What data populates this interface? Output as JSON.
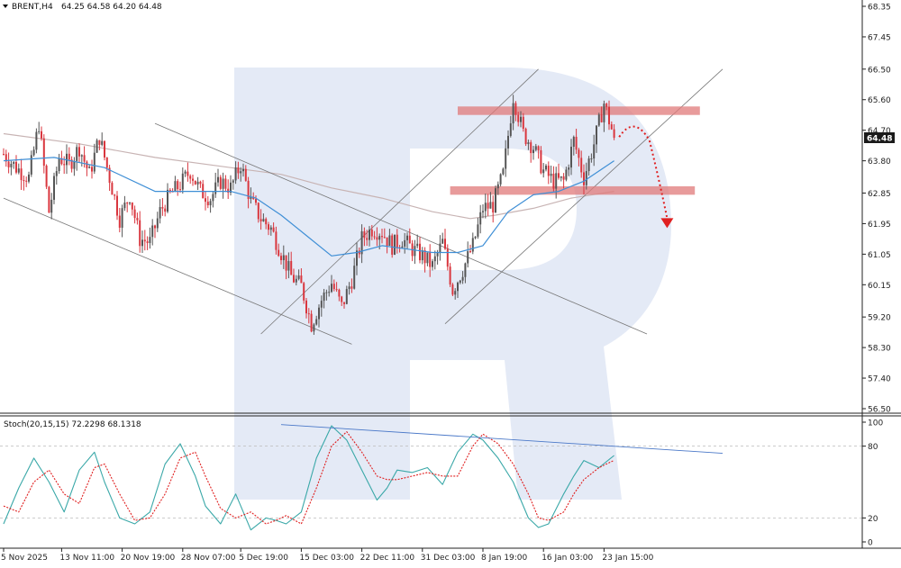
{
  "header": {
    "symbol_label": "BRENT,H4",
    "ohlc_label": "64.25 64.58 64.20 64.48",
    "stoch_label": "Stoch(20,15,15) 72.2298 68.1318"
  },
  "colors": {
    "bull": "#555555",
    "bear": "#d9363e",
    "ma_fast": "#3f8fd6",
    "ma_slow": "#c8b4b4",
    "trend": "#777777",
    "zone": "#e07a7a",
    "stoch_main": "#3aa8a8",
    "stoch_signal": "#e02020",
    "forecast": "#e02020",
    "divergence": "#4a78c8",
    "watermark": "#dfe6f4"
  },
  "chart_data": [
    {
      "type": "candlestick",
      "symbol": "BRENT",
      "timeframe": "H4",
      "last_price": 64.48,
      "last_price_label": "64.48",
      "ylim": [
        56.5,
        68.35
      ],
      "y_ticks": [
        68.35,
        67.45,
        66.5,
        65.6,
        64.7,
        63.8,
        62.85,
        61.95,
        61.05,
        60.15,
        59.2,
        58.3,
        57.4,
        56.5
      ],
      "y_tick_labels": [
        "68.35",
        "67.45",
        "66.50",
        "65.60",
        "64.70",
        "63.80",
        "62.85",
        "61.95",
        "61.05",
        "60.15",
        "59.20",
        "58.30",
        "57.40",
        "56.50"
      ],
      "x_ticks": [
        {
          "label": "5 Nov 2025",
          "bar": 0
        },
        {
          "label": "13 Nov 11:00",
          "bar": 23
        },
        {
          "label": "20 Nov 19:00",
          "bar": 47
        },
        {
          "label": "28 Nov 07:00",
          "bar": 71
        },
        {
          "label": "5 Dec 19:00",
          "bar": 94
        },
        {
          "label": "15 Dec 03:00",
          "bar": 118
        },
        {
          "label": "22 Dec 11:00",
          "bar": 142
        },
        {
          "label": "31 Dec 03:00",
          "bar": 166
        },
        {
          "label": "8 Jan 19:00",
          "bar": 190
        },
        {
          "label": "16 Jan 03:00",
          "bar": 214
        },
        {
          "label": "23 Jan 15:00",
          "bar": 238
        }
      ],
      "close_path": [
        [
          0,
          64.0
        ],
        [
          5,
          63.6
        ],
        [
          10,
          63.3
        ],
        [
          14,
          64.9
        ],
        [
          18,
          62.3
        ],
        [
          22,
          63.9
        ],
        [
          26,
          63.7
        ],
        [
          30,
          64.2
        ],
        [
          34,
          63.4
        ],
        [
          38,
          64.5
        ],
        [
          42,
          63.3
        ],
        [
          46,
          62.1
        ],
        [
          50,
          62.8
        ],
        [
          54,
          61.5
        ],
        [
          58,
          61.4
        ],
        [
          62,
          62.3
        ],
        [
          66,
          62.8
        ],
        [
          70,
          63.1
        ],
        [
          74,
          63.5
        ],
        [
          78,
          62.9
        ],
        [
          82,
          62.7
        ],
        [
          86,
          63.2
        ],
        [
          90,
          63.0
        ],
        [
          94,
          63.7
        ],
        [
          98,
          62.6
        ],
        [
          102,
          62.1
        ],
        [
          106,
          61.8
        ],
        [
          110,
          61.1
        ],
        [
          114,
          60.4
        ],
        [
          118,
          60.1
        ],
        [
          122,
          59.0
        ],
        [
          126,
          59.7
        ],
        [
          130,
          60.2
        ],
        [
          134,
          59.5
        ],
        [
          138,
          60.3
        ],
        [
          142,
          61.5
        ],
        [
          146,
          61.8
        ],
        [
          150,
          61.7
        ],
        [
          154,
          61.3
        ],
        [
          158,
          61.5
        ],
        [
          162,
          61.2
        ],
        [
          166,
          61.0
        ],
        [
          170,
          60.7
        ],
        [
          174,
          61.4
        ],
        [
          178,
          60.0
        ],
        [
          182,
          60.6
        ],
        [
          186,
          61.3
        ],
        [
          190,
          62.4
        ],
        [
          194,
          62.5
        ],
        [
          198,
          63.4
        ],
        [
          202,
          65.7
        ],
        [
          206,
          64.6
        ],
        [
          210,
          64.2
        ],
        [
          214,
          63.5
        ],
        [
          218,
          63.2
        ],
        [
          222,
          63.2
        ],
        [
          226,
          64.4
        ],
        [
          230,
          63.3
        ],
        [
          234,
          64.3
        ],
        [
          238,
          65.5
        ],
        [
          242,
          64.48
        ]
      ],
      "moving_average_fast": [
        [
          0,
          63.8
        ],
        [
          20,
          63.9
        ],
        [
          40,
          63.6
        ],
        [
          60,
          62.9
        ],
        [
          75,
          62.9
        ],
        [
          90,
          62.9
        ],
        [
          100,
          62.7
        ],
        [
          110,
          62.2
        ],
        [
          120,
          61.6
        ],
        [
          130,
          61.0
        ],
        [
          140,
          61.1
        ],
        [
          150,
          61.3
        ],
        [
          160,
          61.2
        ],
        [
          170,
          61.1
        ],
        [
          180,
          61.1
        ],
        [
          190,
          61.3
        ],
        [
          200,
          62.3
        ],
        [
          210,
          62.8
        ],
        [
          220,
          62.9
        ],
        [
          230,
          63.2
        ],
        [
          242,
          63.8
        ]
      ],
      "moving_average_slow": [
        [
          0,
          64.6
        ],
        [
          30,
          64.3
        ],
        [
          60,
          63.9
        ],
        [
          90,
          63.6
        ],
        [
          110,
          63.4
        ],
        [
          130,
          63.0
        ],
        [
          150,
          62.7
        ],
        [
          170,
          62.3
        ],
        [
          185,
          62.1
        ],
        [
          195,
          62.2
        ],
        [
          210,
          62.4
        ],
        [
          225,
          62.7
        ],
        [
          242,
          62.9
        ]
      ],
      "trend_lines": [
        {
          "from": [
            0,
            62.7
          ],
          "to": [
            138,
            58.4
          ]
        },
        {
          "from": [
            60,
            64.9
          ],
          "to": [
            255,
            58.7
          ]
        },
        {
          "from": [
            102,
            58.7
          ],
          "to": [
            212,
            66.5
          ]
        },
        {
          "from": [
            175,
            59.0
          ],
          "to": [
            285,
            66.5
          ]
        }
      ],
      "resistance_zone": {
        "from_bar": 180,
        "to_bar": 276,
        "top": 65.4,
        "bottom": 65.15
      },
      "support_zone": {
        "from_bar": 177,
        "to_bar": 274,
        "top": 63.05,
        "bottom": 62.8
      },
      "forecast_path": [
        [
          244,
          64.5
        ],
        [
          250,
          64.9
        ],
        [
          256,
          64.4
        ],
        [
          260,
          63.2
        ],
        [
          263,
          61.95
        ]
      ]
    },
    {
      "type": "line",
      "indicator": "Stochastic Oscillator",
      "params": [
        20,
        15,
        15
      ],
      "main_value": 72.2298,
      "signal_value": 68.1318,
      "ylim": [
        0,
        100
      ],
      "y_ticks": [
        100,
        80,
        20,
        0
      ],
      "y_tick_labels": [
        "100",
        "80",
        "20",
        "0"
      ],
      "levels": [
        80,
        20
      ],
      "series": [
        {
          "role": "main",
          "x": [
            0,
            6,
            12,
            18,
            24,
            30,
            36,
            40,
            46,
            52,
            58,
            64,
            70,
            76,
            80,
            86,
            92,
            98,
            104,
            108,
            112,
            118,
            124,
            130,
            136,
            142,
            148,
            152,
            156,
            162,
            168,
            174,
            180,
            186,
            190,
            196,
            202,
            208,
            212,
            216,
            222,
            226,
            230,
            236,
            242
          ],
          "y": [
            15,
            45,
            70,
            50,
            25,
            60,
            75,
            50,
            20,
            15,
            25,
            65,
            82,
            55,
            30,
            15,
            40,
            10,
            20,
            18,
            15,
            25,
            70,
            97,
            85,
            60,
            35,
            45,
            60,
            58,
            62,
            48,
            75,
            90,
            85,
            70,
            50,
            20,
            12,
            15,
            40,
            55,
            68,
            62,
            72.2
          ]
        },
        {
          "role": "signal",
          "x": [
            0,
            6,
            12,
            18,
            24,
            30,
            36,
            40,
            46,
            52,
            58,
            64,
            70,
            76,
            80,
            86,
            92,
            98,
            104,
            108,
            112,
            118,
            124,
            130,
            136,
            142,
            148,
            152,
            156,
            162,
            168,
            174,
            180,
            186,
            190,
            196,
            202,
            208,
            212,
            216,
            222,
            226,
            230,
            236,
            242
          ],
          "y": [
            30,
            25,
            50,
            60,
            40,
            32,
            62,
            65,
            40,
            18,
            20,
            40,
            70,
            75,
            55,
            28,
            20,
            25,
            15,
            18,
            22,
            15,
            45,
            80,
            92,
            75,
            55,
            52,
            52,
            55,
            58,
            55,
            55,
            80,
            90,
            82,
            65,
            40,
            20,
            18,
            25,
            40,
            52,
            62,
            68.1
          ]
        }
      ],
      "divergence_line": {
        "from": [
          110,
          98
        ],
        "to": [
          285,
          74
        ]
      }
    }
  ]
}
